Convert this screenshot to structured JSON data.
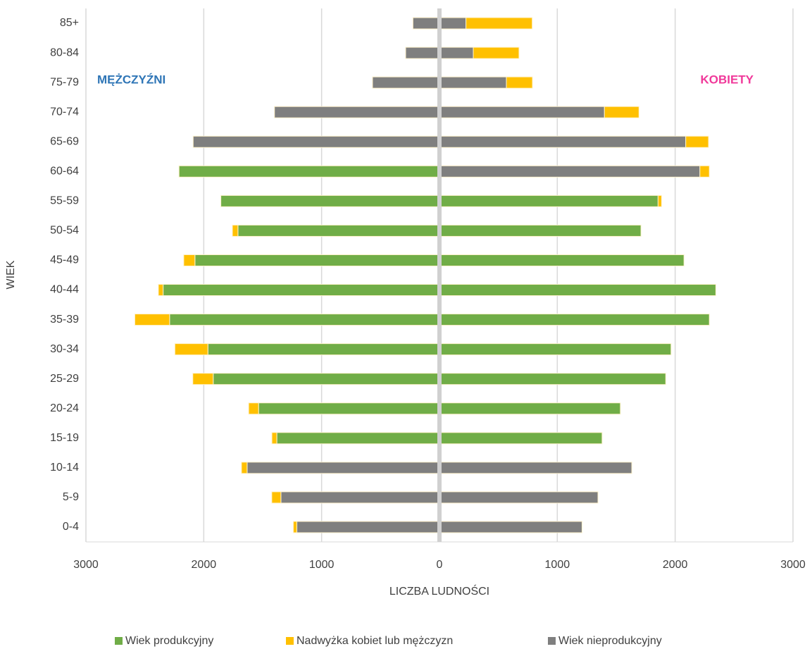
{
  "chart_data": {
    "type": "pyramid",
    "y_label": "WIEK",
    "x_label": "LICZBA LUDNOŚCI",
    "left_annotation": "MĘŻCZYŹNI",
    "right_annotation": "KOBIETY",
    "left_annotation_color": "#2e75b6",
    "right_annotation_color": "#f0399a",
    "categories": [
      "0-4",
      "5-9",
      "10-14",
      "15-19",
      "20-24",
      "25-29",
      "30-34",
      "35-39",
      "40-44",
      "45-49",
      "50-54",
      "55-59",
      "60-64",
      "65-69",
      "70-74",
      "75-79",
      "80-84",
      "85+"
    ],
    "series": [
      {
        "name": "Wiek produkcyjny",
        "color": "#70ad47",
        "left_values": [
          0,
          0,
          0,
          -1380,
          -1535,
          -1920,
          -1965,
          -2290,
          -2345,
          -2075,
          -1710,
          -1855,
          -2210,
          0,
          0,
          0,
          0,
          0
        ],
        "right_values": [
          0,
          0,
          0,
          1380,
          1535,
          1920,
          1965,
          2290,
          2345,
          2075,
          1710,
          1855,
          0,
          0,
          0,
          0,
          0,
          0
        ]
      },
      {
        "name": "Nadwyżka kobiet lub mężczyzn",
        "color": "#ffc000",
        "left_values": [
          -30,
          -78,
          -48,
          -42,
          -84,
          -173,
          -280,
          -295,
          -40,
          -95,
          -47,
          0,
          0,
          0,
          0,
          0,
          0,
          0
        ],
        "right_values": [
          0,
          0,
          0,
          0,
          0,
          0,
          0,
          0,
          0,
          0,
          0,
          30,
          80,
          193,
          293,
          221,
          388,
          562
        ]
      },
      {
        "name": "Wiek nieprodukcyjny",
        "color": "#7f7f7f",
        "left_values": [
          -1210,
          -1345,
          -1632,
          0,
          0,
          0,
          0,
          0,
          0,
          0,
          0,
          0,
          0,
          -2090,
          -1400,
          -568,
          -287,
          -225
        ],
        "right_values": [
          1210,
          1345,
          1632,
          0,
          0,
          0,
          0,
          0,
          0,
          0,
          0,
          0,
          2210,
          2090,
          1400,
          568,
          287,
          225
        ]
      }
    ],
    "stack_order": [
      0,
      2,
      1
    ],
    "xlim": [
      -3000,
      3000
    ],
    "xticks": [
      {
        "value": -3000,
        "label": "3000"
      },
      {
        "value": -2000,
        "label": "2000"
      },
      {
        "value": -1000,
        "label": "1000"
      },
      0,
      1000,
      2000,
      3000
    ],
    "grid": true
  }
}
